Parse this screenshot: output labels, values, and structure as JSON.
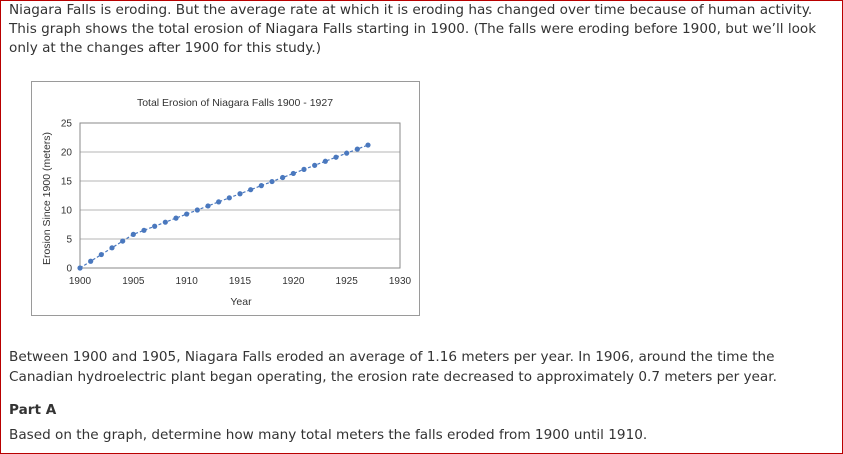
{
  "intro": {
    "text": "Niagara Falls is eroding. But the average rate at which it is eroding has changed over time because of human activity. This graph shows the total erosion of Niagara Falls starting in 1900. (The falls were eroding before 1900, but we’ll look only at the changes after 1900 for this study.)"
  },
  "chart_data": {
    "type": "line",
    "title": "Total Erosion of Niagara Falls 1900 - 1927",
    "xlabel": "Year",
    "ylabel": "Erosion Since 1900 (meters)",
    "xlim": [
      1900,
      1930
    ],
    "ylim": [
      0,
      25
    ],
    "xticks": [
      1900,
      1905,
      1910,
      1915,
      1920,
      1925,
      1930
    ],
    "yticks": [
      0,
      5,
      10,
      15,
      20,
      25
    ],
    "grid": true,
    "color": "#4a78be",
    "x": [
      1900,
      1901,
      1902,
      1903,
      1904,
      1905,
      1906,
      1907,
      1908,
      1909,
      1910,
      1911,
      1912,
      1913,
      1914,
      1915,
      1916,
      1917,
      1918,
      1919,
      1920,
      1921,
      1922,
      1923,
      1924,
      1925,
      1926,
      1927
    ],
    "y": [
      0,
      1.16,
      2.32,
      3.48,
      4.64,
      5.8,
      6.5,
      7.2,
      7.9,
      8.6,
      9.3,
      10.0,
      10.7,
      11.4,
      12.1,
      12.8,
      13.5,
      14.2,
      14.9,
      15.6,
      16.3,
      17.0,
      17.7,
      18.4,
      19.1,
      19.8,
      20.5,
      21.2
    ]
  },
  "body": {
    "paragraph": "Between 1900 and 1905, Niagara Falls eroded an average of 1.16 meters per year. In 1906, around the time the Canadian hydroelectric plant began operating, the erosion rate decreased to approximately 0.7 meters per year.",
    "part_heading": "Part A",
    "question": "Based on the graph, determine how many total meters the falls eroded from 1900 until 1910."
  }
}
